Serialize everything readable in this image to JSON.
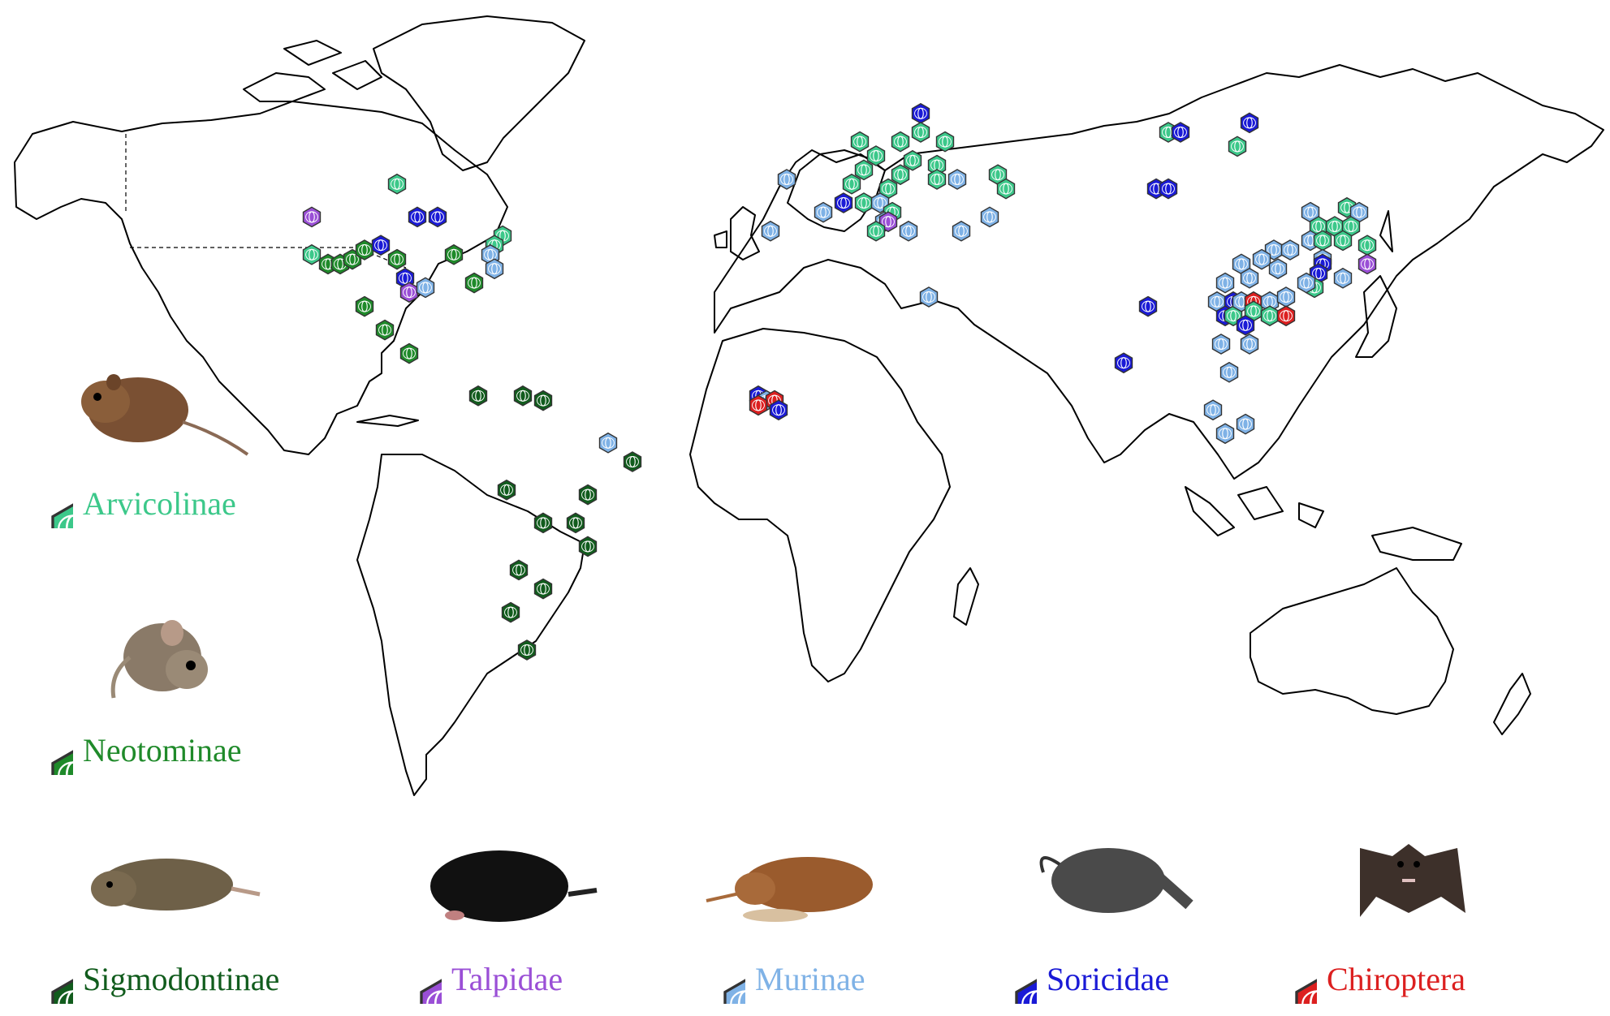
{
  "colors": {
    "arvicolinae": "#3cc88a",
    "neotominae": "#1f8a2a",
    "sigmodontinae": "#115c1d",
    "talpidae": "#9a4fd6",
    "murinae": "#7fb2e6",
    "soricidae": "#1a1ad6",
    "chiroptera": "#dc2020"
  },
  "legend": [
    {
      "key": "arvicolinae",
      "label": "Arvicolinae",
      "icon": "virus-hexagon-icon",
      "animal": "vole-icon"
    },
    {
      "key": "neotominae",
      "label": "Neotominae",
      "icon": "virus-hexagon-icon",
      "animal": "deer-mouse-icon"
    },
    {
      "key": "sigmodontinae",
      "label": "Sigmodontinae",
      "icon": "virus-hexagon-icon",
      "animal": "cotton-rat-icon"
    },
    {
      "key": "talpidae",
      "label": "Talpidae",
      "icon": "virus-hexagon-icon",
      "animal": "mole-icon"
    },
    {
      "key": "murinae",
      "label": "Murinae",
      "icon": "virus-hexagon-icon",
      "animal": "rat-icon"
    },
    {
      "key": "soricidae",
      "label": "Soricidae",
      "icon": "virus-hexagon-icon",
      "animal": "shrew-icon"
    },
    {
      "key": "chiroptera",
      "label": "Chiroptera",
      "icon": "virus-hexagon-icon",
      "animal": "bat-icon"
    }
  ],
  "map_layers": {
    "basemap": "world-outline-icon",
    "marker_icon": "virus-hexagon-icon"
  },
  "sites": [
    {
      "host": "arvicolinae",
      "lon": -100,
      "lat": 54
    },
    {
      "host": "talpidae",
      "lon": -121,
      "lat": 47
    },
    {
      "host": "soricidae",
      "lon": -95,
      "lat": 47
    },
    {
      "host": "soricidae",
      "lon": -90,
      "lat": 47
    },
    {
      "host": "arvicolinae",
      "lon": -74,
      "lat": 43
    },
    {
      "host": "arvicolinae",
      "lon": -76,
      "lat": 41
    },
    {
      "host": "murinae",
      "lon": -77,
      "lat": 39
    },
    {
      "host": "arvicolinae",
      "lon": -121,
      "lat": 39
    },
    {
      "host": "neotominae",
      "lon": -117,
      "lat": 37
    },
    {
      "host": "neotominae",
      "lon": -114,
      "lat": 37
    },
    {
      "host": "neotominae",
      "lon": -111,
      "lat": 38
    },
    {
      "host": "neotominae",
      "lon": -108,
      "lat": 40
    },
    {
      "host": "soricidae",
      "lon": -104,
      "lat": 41
    },
    {
      "host": "neotominae",
      "lon": -100,
      "lat": 38
    },
    {
      "host": "neotominae",
      "lon": -86,
      "lat": 39
    },
    {
      "host": "soricidae",
      "lon": -98,
      "lat": 34
    },
    {
      "host": "talpidae",
      "lon": -97,
      "lat": 31
    },
    {
      "host": "murinae",
      "lon": -93,
      "lat": 32
    },
    {
      "host": "neotominae",
      "lon": -81,
      "lat": 33
    },
    {
      "host": "murinae",
      "lon": -76,
      "lat": 36
    },
    {
      "host": "neotominae",
      "lon": -108,
      "lat": 28
    },
    {
      "host": "neotominae",
      "lon": -103,
      "lat": 23
    },
    {
      "host": "neotominae",
      "lon": -97,
      "lat": 18
    },
    {
      "host": "sigmodontinae",
      "lon": -80,
      "lat": 9
    },
    {
      "host": "sigmodontinae",
      "lon": -69,
      "lat": 9
    },
    {
      "host": "sigmodontinae",
      "lon": -64,
      "lat": 8
    },
    {
      "host": "murinae",
      "lon": -48,
      "lat": -1
    },
    {
      "host": "sigmodontinae",
      "lon": -42,
      "lat": -5
    },
    {
      "host": "sigmodontinae",
      "lon": -73,
      "lat": -11
    },
    {
      "host": "sigmodontinae",
      "lon": -53,
      "lat": -12
    },
    {
      "host": "sigmodontinae",
      "lon": -64,
      "lat": -18
    },
    {
      "host": "sigmodontinae",
      "lon": -56,
      "lat": -18
    },
    {
      "host": "sigmodontinae",
      "lon": -53,
      "lat": -23
    },
    {
      "host": "sigmodontinae",
      "lon": -70,
      "lat": -28
    },
    {
      "host": "sigmodontinae",
      "lon": -64,
      "lat": -32
    },
    {
      "host": "sigmodontinae",
      "lon": -72,
      "lat": -37
    },
    {
      "host": "sigmodontinae",
      "lon": -68,
      "lat": -45
    },
    {
      "host": "murinae",
      "lon": -4,
      "lat": 55
    },
    {
      "host": "murinae",
      "lon": -8,
      "lat": 44
    },
    {
      "host": "arvicolinae",
      "lon": 14,
      "lat": 63
    },
    {
      "host": "arvicolinae",
      "lon": 15,
      "lat": 57
    },
    {
      "host": "arvicolinae",
      "lon": 18,
      "lat": 60
    },
    {
      "host": "arvicolinae",
      "lon": 24,
      "lat": 63
    },
    {
      "host": "soricidae",
      "lon": 29,
      "lat": 69
    },
    {
      "host": "arvicolinae",
      "lon": 29,
      "lat": 65
    },
    {
      "host": "arvicolinae",
      "lon": 35,
      "lat": 63
    },
    {
      "host": "arvicolinae",
      "lon": 27,
      "lat": 59
    },
    {
      "host": "arvicolinae",
      "lon": 33,
      "lat": 58
    },
    {
      "host": "arvicolinae",
      "lon": 33,
      "lat": 55
    },
    {
      "host": "murinae",
      "lon": 38,
      "lat": 55
    },
    {
      "host": "arvicolinae",
      "lon": 48,
      "lat": 56
    },
    {
      "host": "arvicolinae",
      "lon": 50,
      "lat": 53
    },
    {
      "host": "arvicolinae",
      "lon": 12,
      "lat": 54
    },
    {
      "host": "arvicolinae",
      "lon": 21,
      "lat": 53
    },
    {
      "host": "arvicolinae",
      "lon": 24,
      "lat": 56
    },
    {
      "host": "soricidae",
      "lon": 10,
      "lat": 50
    },
    {
      "host": "arvicolinae",
      "lon": 15,
      "lat": 50
    },
    {
      "host": "murinae",
      "lon": 19,
      "lat": 50
    },
    {
      "host": "arvicolinae",
      "lon": 22,
      "lat": 48
    },
    {
      "host": "murinae",
      "lon": 5,
      "lat": 48
    },
    {
      "host": "murinae",
      "lon": 20,
      "lat": 46
    },
    {
      "host": "talpidae",
      "lon": 21,
      "lat": 46
    },
    {
      "host": "arvicolinae",
      "lon": 18,
      "lat": 44
    },
    {
      "host": "murinae",
      "lon": 26,
      "lat": 44
    },
    {
      "host": "murinae",
      "lon": 39,
      "lat": 44
    },
    {
      "host": "murinae",
      "lon": 46,
      "lat": 47
    },
    {
      "host": "murinae",
      "lon": 31,
      "lat": 30
    },
    {
      "host": "arvicolinae",
      "lon": 90,
      "lat": 65
    },
    {
      "host": "soricidae",
      "lon": 93,
      "lat": 65
    },
    {
      "host": "soricidae",
      "lon": 110,
      "lat": 67
    },
    {
      "host": "arvicolinae",
      "lon": 107,
      "lat": 62
    },
    {
      "host": "soricidae",
      "lon": 87,
      "lat": 53
    },
    {
      "host": "soricidae",
      "lon": 90,
      "lat": 53
    },
    {
      "host": "murinae",
      "lon": 125,
      "lat": 48
    },
    {
      "host": "arvicolinae",
      "lon": 134,
      "lat": 49
    },
    {
      "host": "murinae",
      "lon": 137,
      "lat": 48
    },
    {
      "host": "arvicolinae",
      "lon": 127,
      "lat": 45
    },
    {
      "host": "arvicolinae",
      "lon": 131,
      "lat": 45
    },
    {
      "host": "arvicolinae",
      "lon": 135,
      "lat": 45
    },
    {
      "host": "murinae",
      "lon": 125,
      "lat": 42
    },
    {
      "host": "arvicolinae",
      "lon": 128,
      "lat": 42
    },
    {
      "host": "arvicolinae",
      "lon": 133,
      "lat": 42
    },
    {
      "host": "arvicolinae",
      "lon": 139,
      "lat": 41
    },
    {
      "host": "murinae",
      "lon": 116,
      "lat": 40
    },
    {
      "host": "murinae",
      "lon": 120,
      "lat": 40
    },
    {
      "host": "murinae",
      "lon": 108,
      "lat": 37
    },
    {
      "host": "murinae",
      "lon": 113,
      "lat": 38
    },
    {
      "host": "murinae",
      "lon": 104,
      "lat": 33
    },
    {
      "host": "murinae",
      "lon": 110,
      "lat": 34
    },
    {
      "host": "murinae",
      "lon": 117,
      "lat": 36
    },
    {
      "host": "murinae",
      "lon": 128,
      "lat": 38
    },
    {
      "host": "soricidae",
      "lon": 128,
      "lat": 37
    },
    {
      "host": "soricidae",
      "lon": 127,
      "lat": 35
    },
    {
      "host": "talpidae",
      "lon": 139,
      "lat": 37
    },
    {
      "host": "murinae",
      "lon": 133,
      "lat": 34
    },
    {
      "host": "arvicolinae",
      "lon": 126,
      "lat": 32
    },
    {
      "host": "murinae",
      "lon": 124,
      "lat": 33
    },
    {
      "host": "soricidae",
      "lon": 85,
      "lat": 28
    },
    {
      "host": "soricidae",
      "lon": 79,
      "lat": 16
    },
    {
      "host": "murinae",
      "lon": 102,
      "lat": 29
    },
    {
      "host": "soricidae",
      "lon": 106,
      "lat": 29
    },
    {
      "host": "soricidae",
      "lon": 104,
      "lat": 26
    },
    {
      "host": "arvicolinae",
      "lon": 106,
      "lat": 26
    },
    {
      "host": "murinae",
      "lon": 108,
      "lat": 29
    },
    {
      "host": "chiroptera",
      "lon": 111,
      "lat": 29
    },
    {
      "host": "arvicolinae",
      "lon": 111,
      "lat": 27
    },
    {
      "host": "murinae",
      "lon": 115,
      "lat": 29
    },
    {
      "host": "murinae",
      "lon": 119,
      "lat": 30
    },
    {
      "host": "arvicolinae",
      "lon": 115,
      "lat": 26
    },
    {
      "host": "chiroptera",
      "lon": 119,
      "lat": 26
    },
    {
      "host": "soricidae",
      "lon": 109,
      "lat": 24
    },
    {
      "host": "murinae",
      "lon": 103,
      "lat": 20
    },
    {
      "host": "murinae",
      "lon": 110,
      "lat": 20
    },
    {
      "host": "murinae",
      "lon": 105,
      "lat": 14
    },
    {
      "host": "murinae",
      "lon": 101,
      "lat": 6
    },
    {
      "host": "murinae",
      "lon": 104,
      "lat": 1
    },
    {
      "host": "murinae",
      "lon": 109,
      "lat": 3
    },
    {
      "host": "soricidae",
      "lon": -11,
      "lat": 9
    },
    {
      "host": "murinae",
      "lon": -9,
      "lat": 8
    },
    {
      "host": "chiroptera",
      "lon": -7,
      "lat": 8
    },
    {
      "host": "chiroptera",
      "lon": -11,
      "lat": 7
    },
    {
      "host": "soricidae",
      "lon": -6,
      "lat": 6
    }
  ]
}
